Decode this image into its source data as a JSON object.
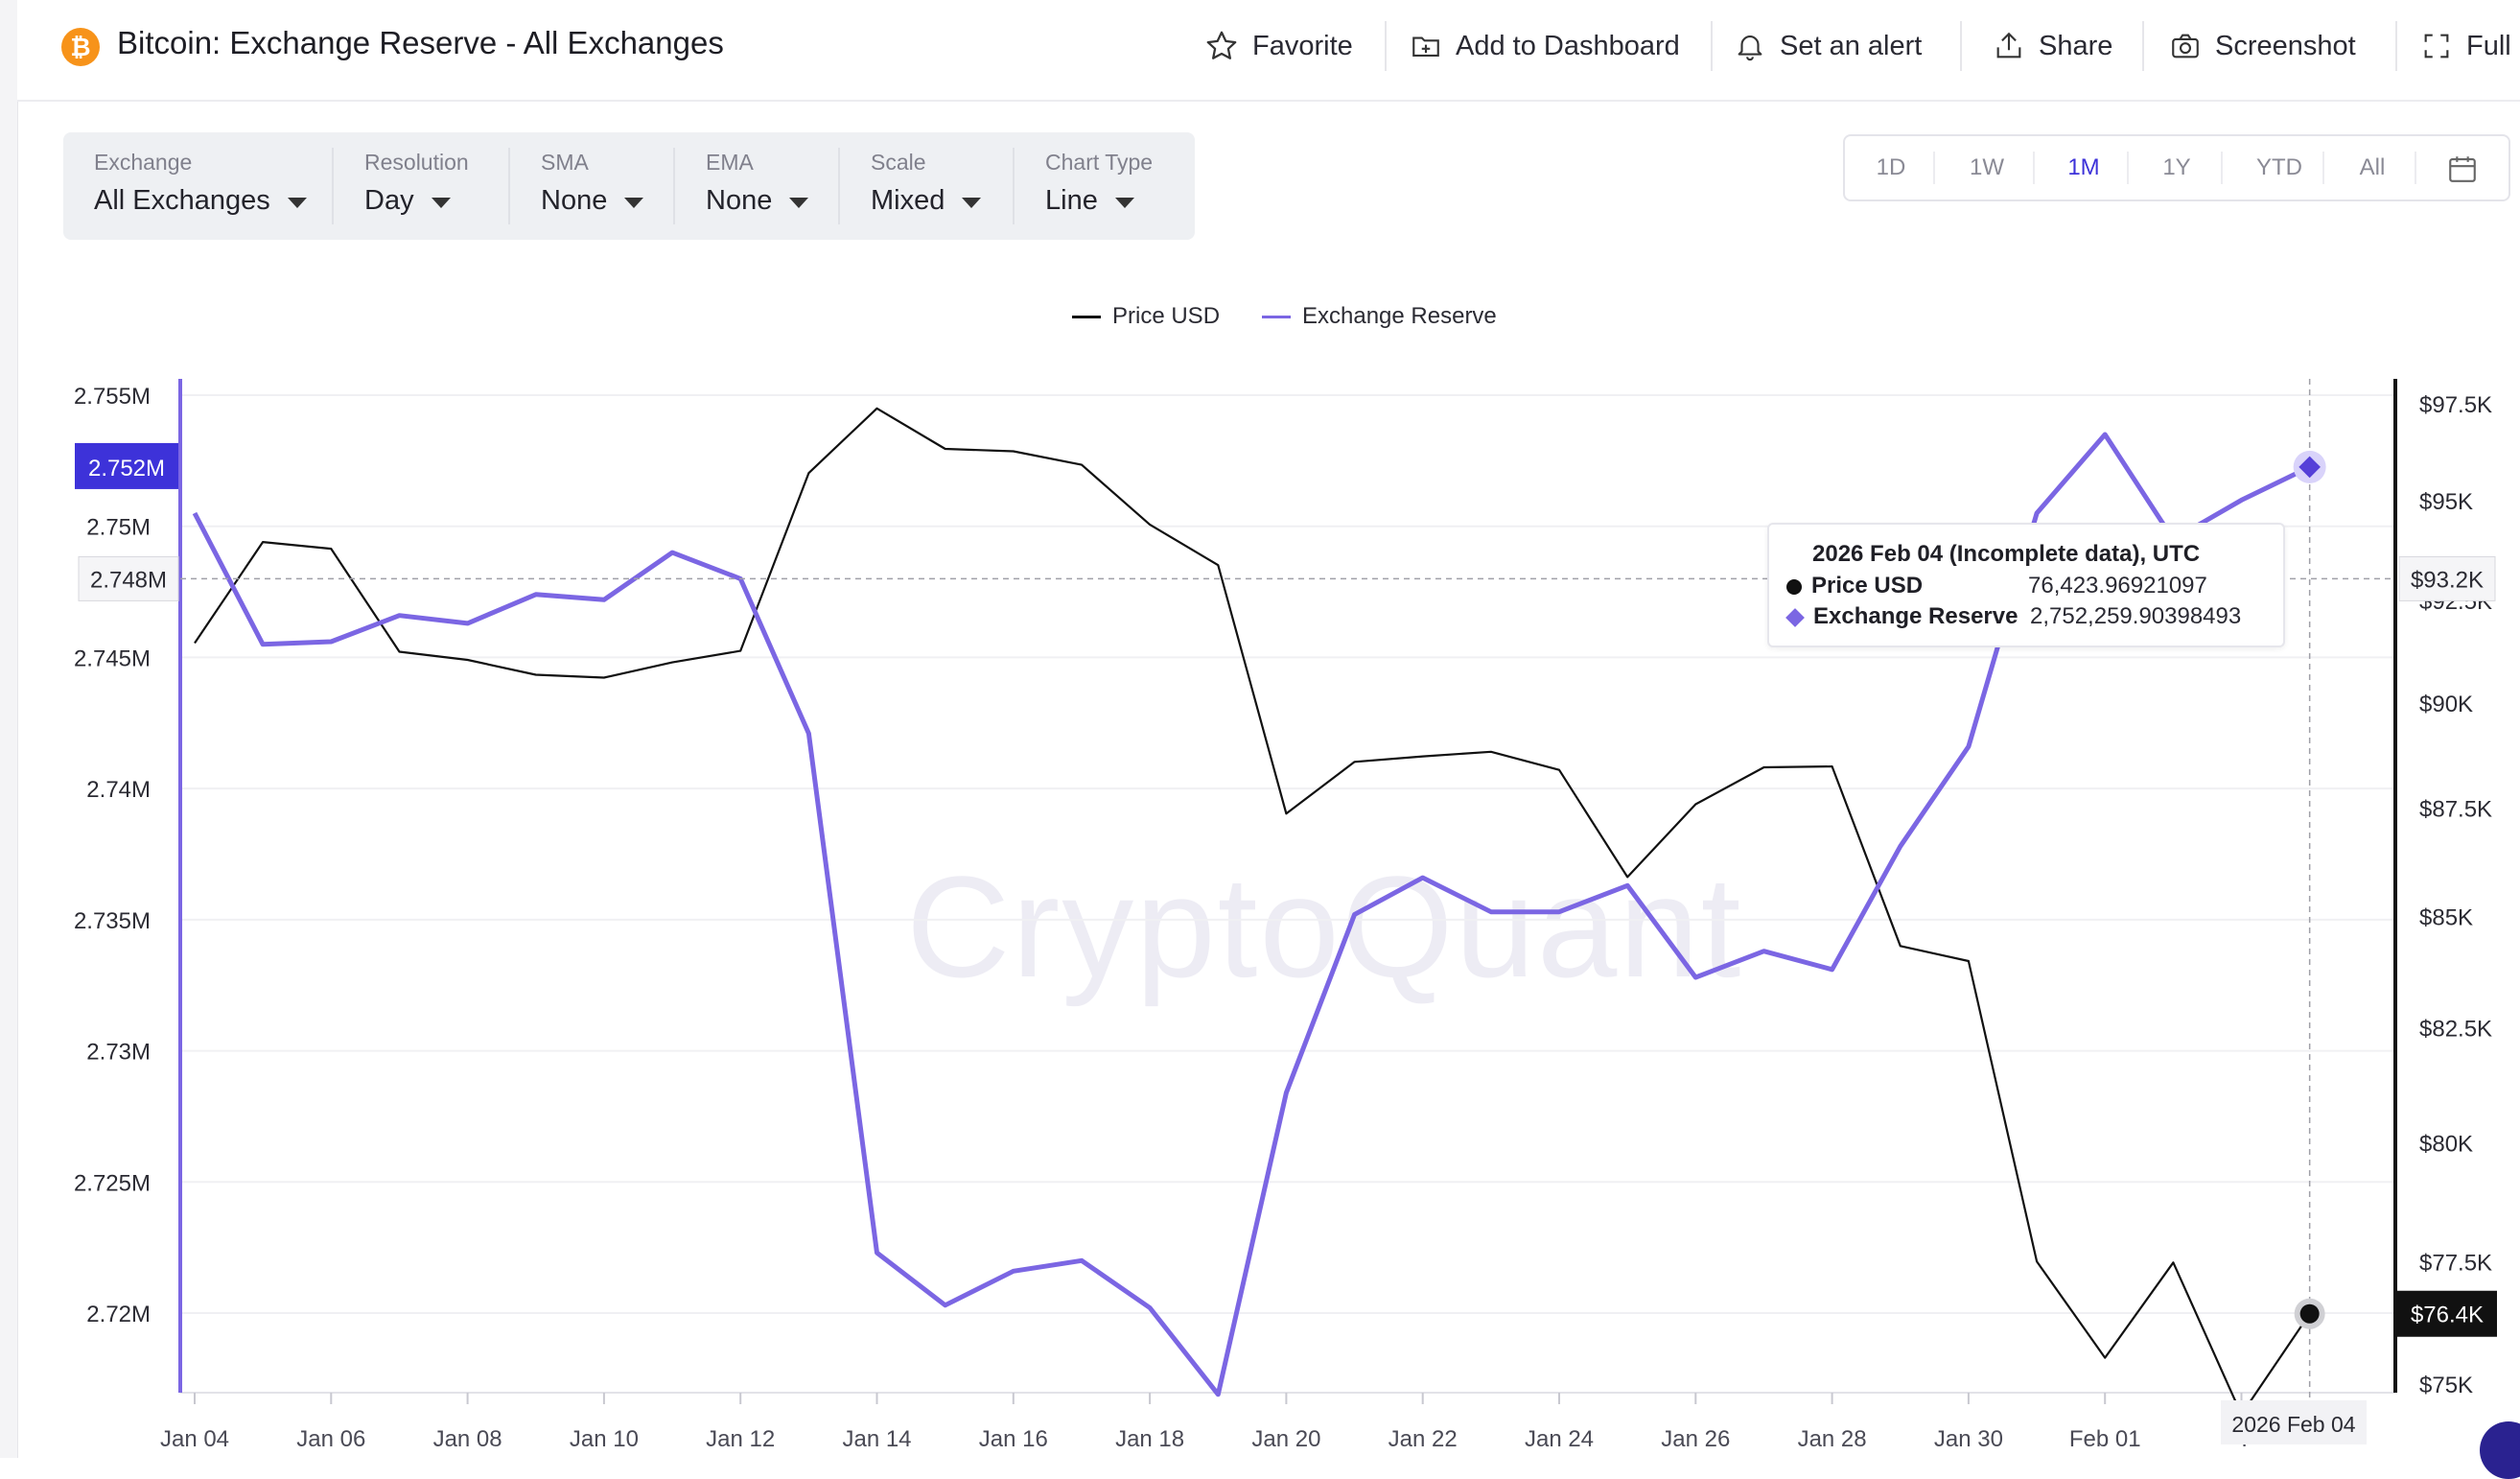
{
  "header": {
    "coin_symbol": "₿",
    "title": "Bitcoin: Exchange Reserve - All Exchanges",
    "actions": {
      "favorite": "Favorite",
      "add_dashboard": "Add to Dashboard",
      "alert": "Set an alert",
      "share": "Share",
      "screenshot": "Screenshot",
      "fullscreen": "Full"
    }
  },
  "toolbar": {
    "exchange": {
      "label": "Exchange",
      "value": "All Exchanges"
    },
    "resolution": {
      "label": "Resolution",
      "value": "Day"
    },
    "sma": {
      "label": "SMA",
      "value": "None"
    },
    "ema": {
      "label": "EMA",
      "value": "None"
    },
    "scale": {
      "label": "Scale",
      "value": "Mixed"
    },
    "chart_type": {
      "label": "Chart Type",
      "value": "Line"
    }
  },
  "range": {
    "options": [
      "1D",
      "1W",
      "1M",
      "1Y",
      "YTD",
      "All"
    ],
    "active": "1M"
  },
  "watermark": "CryptoQuant",
  "colors": {
    "price": "#111111",
    "reserve": "#7b66e3",
    "accent": "#3d32d9"
  },
  "tooltip": {
    "title": "2026 Feb 04 (Incomplete data), UTC",
    "price_name": "Price USD",
    "price_value": "76,423.96921097",
    "reserve_name": "Exchange Reserve",
    "reserve_value": "2,752,259.90398493"
  },
  "markers": {
    "reserve_current": "2.752M",
    "reserve_hover": "2.748M",
    "price_hover": "$93.2K",
    "price_current": "$76.4K",
    "date_hover": "2026 Feb 04"
  },
  "chart_data": {
    "type": "line",
    "title": "Bitcoin: Exchange Reserve - All Exchanges",
    "x": [
      "Jan 04",
      "Jan 05",
      "Jan 06",
      "Jan 07",
      "Jan 08",
      "Jan 09",
      "Jan 10",
      "Jan 11",
      "Jan 12",
      "Jan 13",
      "Jan 14",
      "Jan 15",
      "Jan 16",
      "Jan 17",
      "Jan 18",
      "Jan 19",
      "Jan 20",
      "Jan 21",
      "Jan 22",
      "Jan 23",
      "Jan 24",
      "Jan 25",
      "Jan 26",
      "Jan 27",
      "Jan 28",
      "Jan 29",
      "Jan 30",
      "Jan 31",
      "Feb 01",
      "Feb 02",
      "Feb 03",
      "Feb 04"
    ],
    "x_tick_labels": [
      "Jan 04",
      "Jan 06",
      "Jan 08",
      "Jan 10",
      "Jan 12",
      "Jan 14",
      "Jan 16",
      "Jan 18",
      "Jan 20",
      "Jan 22",
      "Jan 24",
      "Jan 26",
      "Jan 28",
      "Jan 30",
      "Feb 01",
      "F"
    ],
    "series": [
      {
        "name": "Price USD",
        "axis": "right",
        "color": "#111111",
        "values": [
          91450,
          93960,
          93790,
          91240,
          91040,
          90680,
          90610,
          90980,
          91260,
          95710,
          97380,
          96330,
          96270,
          95920,
          94400,
          93380,
          87370,
          88590,
          88720,
          88830,
          88400,
          85900,
          87590,
          88460,
          88480,
          84330,
          83990,
          77500,
          75530,
          77480,
          74390,
          76424
        ]
      },
      {
        "name": "Exchange Reserve",
        "axis": "left",
        "color": "#7b66e3",
        "values": [
          2750500,
          2745500,
          2745600,
          2746600,
          2746300,
          2747400,
          2747200,
          2749000,
          2748000,
          2742100,
          2722300,
          2720300,
          2721600,
          2722000,
          2720200,
          2716900,
          2728400,
          2735200,
          2736600,
          2735300,
          2735300,
          2736300,
          2732800,
          2733800,
          2733100,
          2737800,
          2741600,
          2750500,
          2753500,
          2749500,
          2751000,
          2752260
        ]
      }
    ],
    "y_left": {
      "ticks": [
        "2.72M",
        "2.725M",
        "2.73M",
        "2.735M",
        "2.74M",
        "2.745M",
        "2.75M",
        "2.755M"
      ],
      "range": [
        2716900,
        2755000
      ]
    },
    "y_right": {
      "ticks": [
        "$75K",
        "$77.5K",
        "$80K",
        "$82.5K",
        "$85K",
        "$87.5K",
        "$90K",
        "$92.5K",
        "$95K",
        "$97.5K"
      ],
      "scale": "log",
      "range": [
        75000,
        97500
      ]
    },
    "legend": [
      "Price USD",
      "Exchange Reserve"
    ],
    "legend_position": "top-center",
    "grid": true
  }
}
